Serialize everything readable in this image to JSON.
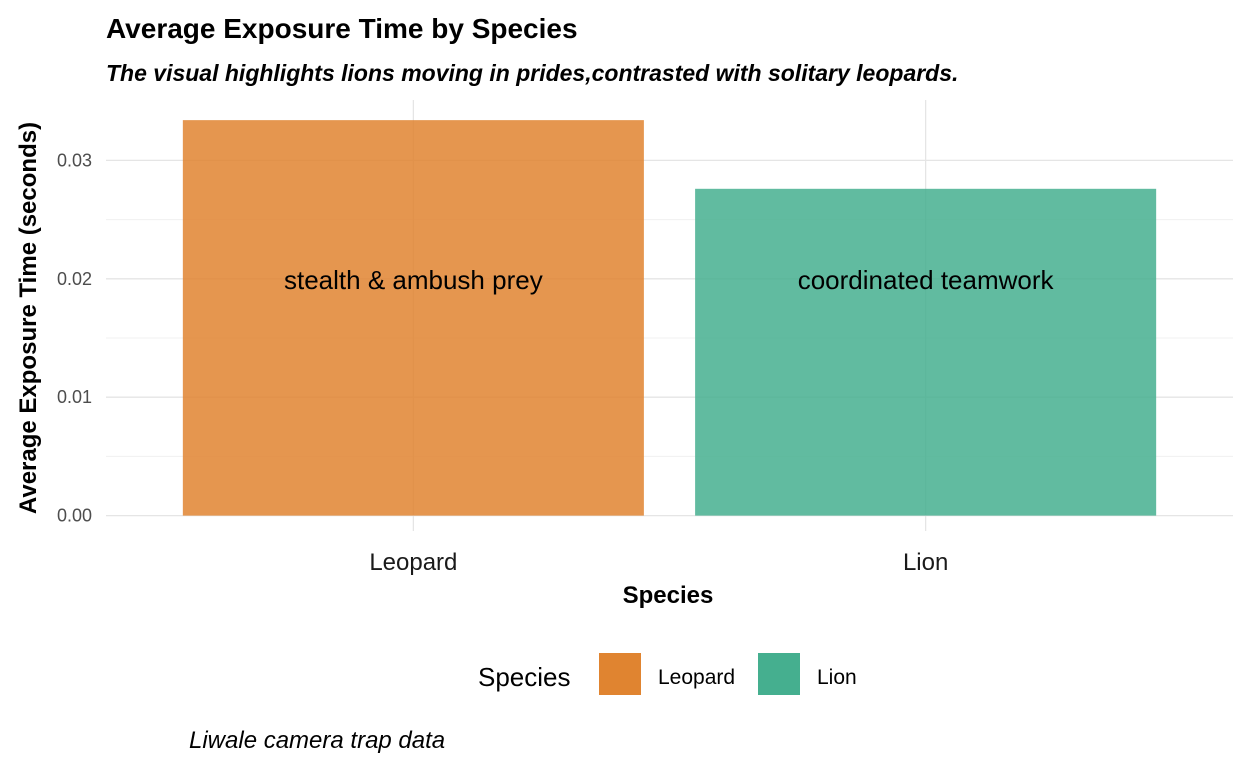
{
  "chart_data": {
    "type": "bar",
    "title": "Average Exposure Time by Species",
    "subtitle": "The visual highlights lions moving in prides,contrasted with solitary leopards.",
    "xlabel": "Species",
    "ylabel": "Average Exposure Time (seconds)",
    "categories": [
      "Leopard",
      "Lion"
    ],
    "values": [
      0.0334,
      0.0276
    ],
    "bar_labels": [
      "stealth & ambush prey",
      "coordinated teamwork"
    ],
    "bar_label_y": 0.0199,
    "colors": [
      "#E08430",
      "#45AF8F"
    ],
    "ylim": [
      -0.0013,
      0.0351
    ],
    "yticks": [
      0,
      0.01,
      0.02,
      0.03
    ],
    "ytick_labels": [
      "0.00",
      "0.01",
      "0.02",
      "0.03"
    ],
    "grid": true,
    "legend": {
      "title": "Species",
      "position": "bottom",
      "entries": [
        "Leopard",
        "Lion"
      ]
    },
    "caption": "Liwale camera trap data"
  }
}
